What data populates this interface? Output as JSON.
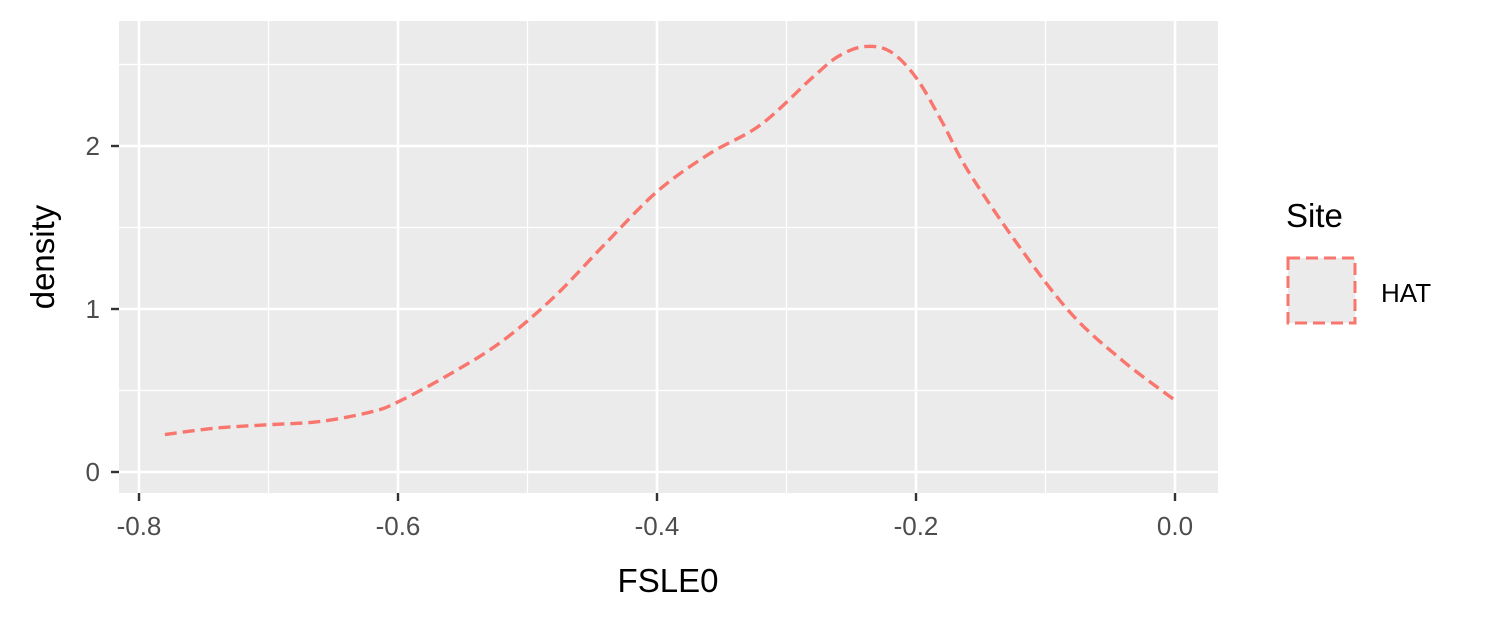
{
  "chart_data": {
    "type": "line",
    "title": "",
    "xlabel": "FSLE0",
    "ylabel": "density",
    "xlim": [
      -0.8,
      0.0
    ],
    "ylim": [
      0,
      2.6
    ],
    "x_ticks": [
      -0.8,
      -0.6,
      -0.4,
      -0.2,
      0.0
    ],
    "x_tick_labels": [
      "-0.8",
      "-0.6",
      "-0.4",
      "-0.2",
      "0.0"
    ],
    "y_ticks": [
      0,
      1,
      2
    ],
    "y_tick_labels": [
      "0",
      "1",
      "2"
    ],
    "grid": true,
    "legend": {
      "title": "Site",
      "placement": "right",
      "entries": [
        "HAT"
      ]
    },
    "series": [
      {
        "name": "HAT",
        "color": "#f8766d",
        "line_style": "dashed",
        "x": [
          -0.78,
          -0.74,
          -0.7,
          -0.66,
          -0.62,
          -0.6,
          -0.56,
          -0.52,
          -0.48,
          -0.44,
          -0.4,
          -0.36,
          -0.32,
          -0.28,
          -0.26,
          -0.24,
          -0.22,
          -0.2,
          -0.18,
          -0.16,
          -0.12,
          -0.08,
          -0.04,
          0.0
        ],
        "y": [
          0.23,
          0.27,
          0.29,
          0.31,
          0.37,
          0.43,
          0.6,
          0.8,
          1.07,
          1.4,
          1.72,
          1.95,
          2.13,
          2.42,
          2.55,
          2.61,
          2.58,
          2.42,
          2.15,
          1.85,
          1.38,
          0.97,
          0.68,
          0.44
        ]
      }
    ]
  }
}
